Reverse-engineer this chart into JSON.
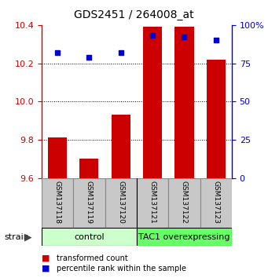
{
  "title": "GDS2451 / 264008_at",
  "samples": [
    "GSM137118",
    "GSM137119",
    "GSM137120",
    "GSM137121",
    "GSM137122",
    "GSM137123"
  ],
  "transformed_counts": [
    9.81,
    9.7,
    9.93,
    10.39,
    10.39,
    10.22
  ],
  "percentile_ranks": [
    82,
    79,
    82,
    93,
    92,
    90
  ],
  "ylim_left": [
    9.6,
    10.4
  ],
  "ylim_right": [
    0,
    100
  ],
  "yticks_left": [
    9.6,
    9.8,
    10.0,
    10.2,
    10.4
  ],
  "yticks_right": [
    0,
    25,
    50,
    75,
    100
  ],
  "ytick_labels_right": [
    "0",
    "25",
    "50",
    "75",
    "100%"
  ],
  "groups": [
    {
      "label": "control",
      "indices": [
        0,
        1,
        2
      ],
      "color": "#ccffcc"
    },
    {
      "label": "TAC1 overexpressing",
      "indices": [
        3,
        4,
        5
      ],
      "color": "#66ff66"
    }
  ],
  "bar_color": "#cc0000",
  "dot_color": "#0000cc",
  "bar_width": 0.6,
  "background_color": "#ffffff",
  "tick_label_color_left": "#cc0000",
  "tick_label_color_right": "#0000cc",
  "legend_items": [
    {
      "color": "#cc0000",
      "label": "transformed count"
    },
    {
      "color": "#0000cc",
      "label": "percentile rank within the sample"
    }
  ],
  "grid_color": "black",
  "grid_linestyle": ":",
  "grid_linewidth": 0.7,
  "label_box_color": "#c8c8c8",
  "label_box_edge": "#888888"
}
